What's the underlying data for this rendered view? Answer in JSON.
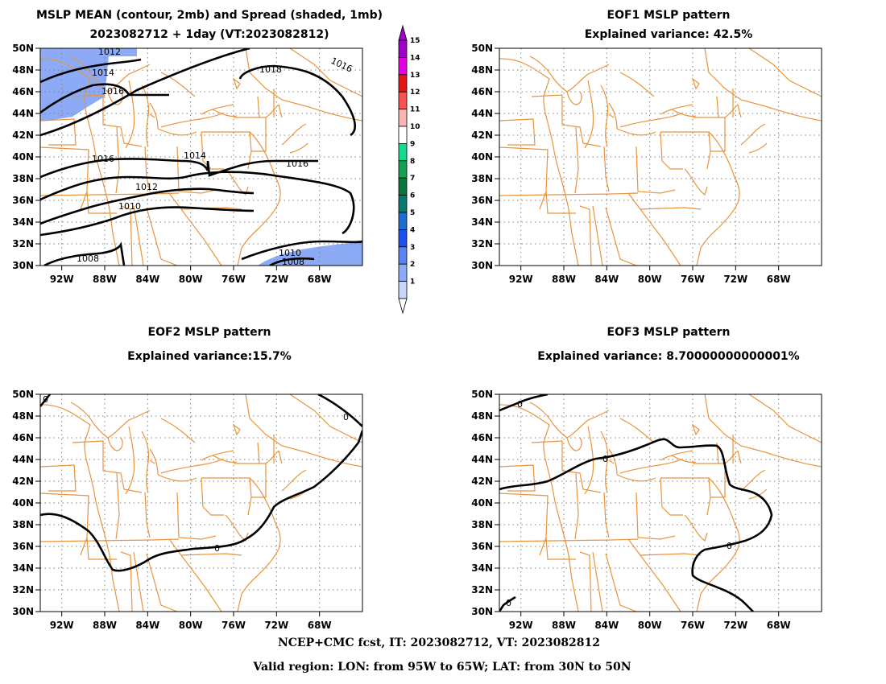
{
  "panels": {
    "mean": {
      "title_line1": "MSLP MEAN (contour, 2mb) and Spread (shaded, 1mb)",
      "title_line2": "2023082712 + 1day (VT:2023082812)",
      "contour_labels": [
        "1012",
        "1014",
        "1016",
        "1018",
        "1016",
        "1016",
        "1014",
        "1016",
        "1012",
        "1010",
        "1008",
        "1010",
        "1008"
      ]
    },
    "eof1": {
      "title_line1": "EOF1 MSLP pattern",
      "title_line2": "Explained variance: 42.5%"
    },
    "eof2": {
      "title_line1": "EOF2 MSLP pattern",
      "title_line2": "Explained variance:15.7%",
      "contour_labels": [
        "0",
        "0",
        "0"
      ]
    },
    "eof3": {
      "title_line1": "EOF3 MSLP pattern",
      "title_line2": "Explained variance: 8.70000000000001%",
      "contour_labels": [
        "0",
        "0",
        "0",
        "0"
      ]
    }
  },
  "axes": {
    "lat_labels": [
      "50N",
      "48N",
      "46N",
      "44N",
      "42N",
      "40N",
      "38N",
      "36N",
      "34N",
      "32N",
      "30N"
    ],
    "lon_labels": [
      "92W",
      "88W",
      "84W",
      "80W",
      "76W",
      "72W",
      "68W"
    ]
  },
  "colorbar": {
    "labels": [
      "15",
      "14",
      "13",
      "12",
      "11",
      "10",
      "9",
      "8",
      "7",
      "6",
      "5",
      "4",
      "3",
      "2",
      "1"
    ],
    "colors": [
      "#a000c8",
      "#e600e6",
      "#e61414",
      "#fa5050",
      "#fab4b4",
      "#ffffff",
      "#14dc8c",
      "#14a050",
      "#0a783c",
      "#0a786e",
      "#1e6ed2",
      "#1e50f0",
      "#5a82f0",
      "#8caaf5",
      "#c8d7fa"
    ]
  },
  "colors": {
    "map_lines": "#e8943c",
    "contours": "#000000",
    "spread_fill": "#8caaf5",
    "grid": "#808080"
  },
  "footer": {
    "line1": "NCEP+CMC fcst, IT: 2023082712, VT: 2023082812",
    "line2": "Valid region: LON: from 95W to 65W; LAT: from 30N to 50N"
  }
}
